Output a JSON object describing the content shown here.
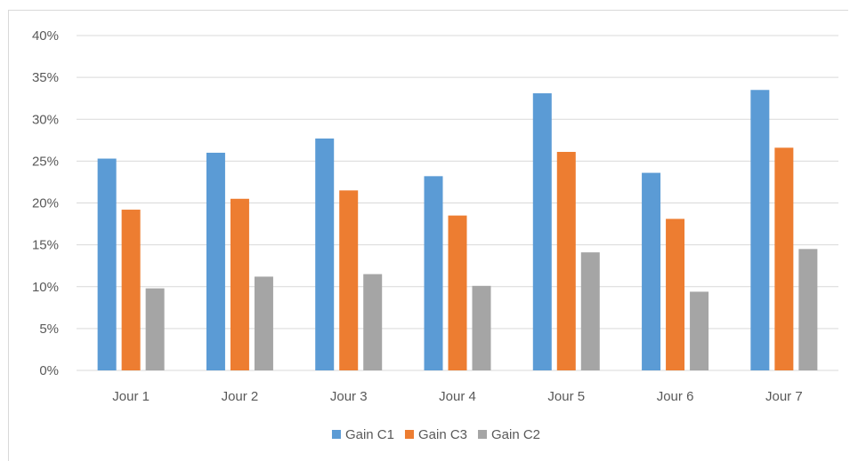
{
  "chart_data": {
    "type": "bar",
    "categories": [
      "Jour 1",
      "Jour 2",
      "Jour 3",
      "Jour 4",
      "Jour 5",
      "Jour 6",
      "Jour 7"
    ],
    "series": [
      {
        "name": "Gain C1",
        "color": "#5b9bd5",
        "values": [
          25.3,
          26.0,
          27.7,
          23.2,
          33.1,
          23.6,
          33.5
        ]
      },
      {
        "name": "Gain C3",
        "color": "#ed7d31",
        "values": [
          19.2,
          20.5,
          21.5,
          18.5,
          26.1,
          18.1,
          26.6
        ]
      },
      {
        "name": "Gain C2",
        "color": "#a5a5a5",
        "values": [
          9.8,
          11.2,
          11.5,
          10.1,
          14.1,
          9.4,
          14.5
        ]
      }
    ],
    "y_ticks": [
      "0%",
      "5%",
      "10%",
      "15%",
      "20%",
      "25%",
      "30%",
      "35%",
      "40%"
    ],
    "ylim": [
      0,
      40
    ],
    "y_unit": "%",
    "grid": true,
    "legend_position": "bottom",
    "gridline_color": "#d9d9d9"
  }
}
